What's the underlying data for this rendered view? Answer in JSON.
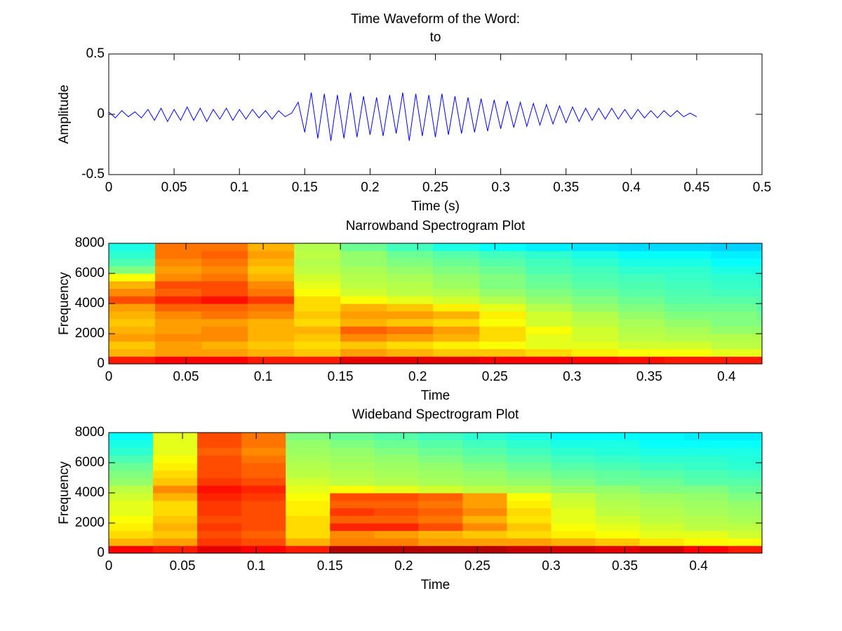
{
  "chart_data": [
    {
      "type": "line",
      "title": [
        "Time Waveform of the Word:",
        "to"
      ],
      "xlabel": "Time (s)",
      "ylabel": "Amplitude",
      "color": "#0000ff",
      "xlim": [
        0,
        0.5
      ],
      "ylim": [
        -0.5,
        0.5
      ],
      "xticks": [
        0,
        0.05,
        0.1,
        0.15,
        0.2,
        0.25,
        0.3,
        0.35,
        0.4,
        0.45,
        0.5
      ],
      "yticks": [
        -0.5,
        0,
        0.5
      ],
      "x": [
        0,
        0.005,
        0.01,
        0.015,
        0.02,
        0.025,
        0.03,
        0.035,
        0.04,
        0.045,
        0.05,
        0.055,
        0.06,
        0.065,
        0.07,
        0.075,
        0.08,
        0.085,
        0.09,
        0.095,
        0.1,
        0.105,
        0.11,
        0.115,
        0.12,
        0.125,
        0.13,
        0.135,
        0.14,
        0.145,
        0.15,
        0.155,
        0.16,
        0.165,
        0.17,
        0.175,
        0.18,
        0.185,
        0.19,
        0.195,
        0.2,
        0.205,
        0.21,
        0.215,
        0.22,
        0.225,
        0.23,
        0.235,
        0.24,
        0.245,
        0.25,
        0.255,
        0.26,
        0.265,
        0.27,
        0.275,
        0.28,
        0.285,
        0.29,
        0.295,
        0.3,
        0.305,
        0.31,
        0.315,
        0.32,
        0.325,
        0.33,
        0.335,
        0.34,
        0.345,
        0.35,
        0.355,
        0.36,
        0.365,
        0.37,
        0.375,
        0.38,
        0.385,
        0.39,
        0.395,
        0.4,
        0.405,
        0.41,
        0.415,
        0.42,
        0.425,
        0.43,
        0.435,
        0.44,
        0.445,
        0.45
      ],
      "values": [
        0.02,
        -0.03,
        0.03,
        -0.02,
        0.02,
        -0.03,
        0.04,
        -0.05,
        0.05,
        -0.06,
        0.04,
        -0.05,
        0.06,
        -0.05,
        0.05,
        -0.06,
        0.04,
        -0.04,
        0.05,
        -0.05,
        0.04,
        -0.04,
        0.04,
        -0.03,
        0.03,
        -0.04,
        0.03,
        -0.02,
        0.01,
        0.1,
        -0.15,
        0.18,
        -0.2,
        0.17,
        -0.22,
        0.16,
        -0.2,
        0.18,
        -0.19,
        0.15,
        -0.17,
        0.14,
        -0.18,
        0.16,
        -0.16,
        0.18,
        -0.22,
        0.17,
        -0.18,
        0.16,
        -0.19,
        0.17,
        -0.17,
        0.15,
        -0.16,
        0.14,
        -0.15,
        0.13,
        -0.14,
        0.12,
        -0.12,
        0.11,
        -0.11,
        0.1,
        -0.1,
        0.09,
        -0.09,
        0.08,
        -0.08,
        0.07,
        -0.07,
        0.06,
        -0.06,
        0.05,
        -0.05,
        0.05,
        -0.04,
        0.05,
        -0.04,
        0.04,
        -0.04,
        0.04,
        -0.03,
        0.03,
        -0.03,
        0.03,
        -0.02,
        0.03,
        -0.02,
        0.01,
        -0.02
      ]
    },
    {
      "type": "heatmap",
      "title": "Narrowband Spectrogram Plot",
      "xlabel": "Time",
      "ylabel": "Frequency",
      "colormap": "jet",
      "xlim": [
        0,
        0.423
      ],
      "ylim": [
        0,
        8000
      ],
      "xticks": [
        0,
        0.05,
        0.1,
        0.15,
        0.2,
        0.25,
        0.3,
        0.35,
        0.4
      ],
      "yticks": [
        0,
        2000,
        4000,
        6000,
        8000
      ],
      "xbins": [
        0,
        0.03,
        0.06,
        0.09,
        0.12,
        0.15,
        0.18,
        0.21,
        0.24,
        0.27,
        0.3,
        0.33,
        0.36,
        0.39,
        0.42,
        0.45
      ],
      "ybins": [
        0,
        500,
        1000,
        1500,
        2000,
        2500,
        3000,
        3500,
        4000,
        4500,
        5000,
        5500,
        6000,
        6500,
        7000,
        7500,
        8000
      ],
      "z": [
        [
          0.85,
          0.88,
          0.88,
          0.85,
          0.85,
          0.9,
          0.9,
          0.9,
          0.88,
          0.88,
          0.87,
          0.86,
          0.85,
          0.85,
          0.85
        ],
        [
          0.7,
          0.72,
          0.72,
          0.7,
          0.68,
          0.72,
          0.7,
          0.68,
          0.68,
          0.66,
          0.64,
          0.62,
          0.62,
          0.6,
          0.6
        ],
        [
          0.68,
          0.72,
          0.7,
          0.68,
          0.66,
          0.68,
          0.66,
          0.64,
          0.62,
          0.6,
          0.6,
          0.58,
          0.58,
          0.56,
          0.56
        ],
        [
          0.72,
          0.74,
          0.74,
          0.7,
          0.68,
          0.74,
          0.72,
          0.7,
          0.66,
          0.6,
          0.58,
          0.56,
          0.55,
          0.55,
          0.55
        ],
        [
          0.7,
          0.72,
          0.74,
          0.7,
          0.7,
          0.78,
          0.76,
          0.72,
          0.66,
          0.62,
          0.58,
          0.55,
          0.54,
          0.52,
          0.52
        ],
        [
          0.68,
          0.72,
          0.72,
          0.7,
          0.66,
          0.7,
          0.68,
          0.66,
          0.62,
          0.58,
          0.56,
          0.54,
          0.52,
          0.5,
          0.5
        ],
        [
          0.7,
          0.74,
          0.76,
          0.74,
          0.68,
          0.72,
          0.72,
          0.7,
          0.64,
          0.58,
          0.55,
          0.52,
          0.5,
          0.5,
          0.48
        ],
        [
          0.72,
          0.78,
          0.78,
          0.76,
          0.66,
          0.7,
          0.68,
          0.64,
          0.6,
          0.55,
          0.52,
          0.5,
          0.48,
          0.48,
          0.46
        ],
        [
          0.8,
          0.84,
          0.86,
          0.82,
          0.66,
          0.62,
          0.6,
          0.58,
          0.55,
          0.52,
          0.5,
          0.48,
          0.46,
          0.46,
          0.45
        ],
        [
          0.74,
          0.78,
          0.8,
          0.76,
          0.62,
          0.58,
          0.56,
          0.55,
          0.52,
          0.5,
          0.48,
          0.46,
          0.45,
          0.44,
          0.44
        ],
        [
          0.7,
          0.8,
          0.8,
          0.74,
          0.6,
          0.56,
          0.55,
          0.53,
          0.5,
          0.48,
          0.46,
          0.45,
          0.44,
          0.43,
          0.42
        ],
        [
          0.62,
          0.74,
          0.76,
          0.7,
          0.58,
          0.55,
          0.54,
          0.52,
          0.5,
          0.47,
          0.45,
          0.44,
          0.43,
          0.42,
          0.42
        ],
        [
          0.5,
          0.72,
          0.74,
          0.68,
          0.56,
          0.54,
          0.52,
          0.5,
          0.48,
          0.45,
          0.44,
          0.42,
          0.42,
          0.4,
          0.4
        ],
        [
          0.45,
          0.74,
          0.76,
          0.7,
          0.55,
          0.52,
          0.5,
          0.48,
          0.46,
          0.44,
          0.42,
          0.4,
          0.4,
          0.38,
          0.38
        ],
        [
          0.42,
          0.76,
          0.78,
          0.72,
          0.56,
          0.52,
          0.48,
          0.46,
          0.44,
          0.42,
          0.4,
          0.38,
          0.38,
          0.36,
          0.36
        ],
        [
          0.4,
          0.76,
          0.76,
          0.7,
          0.55,
          0.48,
          0.44,
          0.4,
          0.38,
          0.36,
          0.35,
          0.34,
          0.34,
          0.33,
          0.33
        ]
      ]
    },
    {
      "type": "heatmap",
      "title": "Wideband Spectrogram Plot",
      "xlabel": "Time",
      "ylabel": "Frequency",
      "colormap": "jet",
      "xlim": [
        0,
        0.443
      ],
      "ylim": [
        0,
        8000
      ],
      "xticks": [
        0,
        0.05,
        0.1,
        0.15,
        0.2,
        0.25,
        0.3,
        0.35,
        0.4
      ],
      "yticks": [
        0,
        2000,
        4000,
        6000,
        8000
      ],
      "xbins": [
        0,
        0.03,
        0.06,
        0.09,
        0.12,
        0.15,
        0.18,
        0.21,
        0.24,
        0.27,
        0.3,
        0.33,
        0.36,
        0.39,
        0.42,
        0.45
      ],
      "ybins": [
        0,
        500,
        1000,
        1500,
        2000,
        2500,
        3000,
        3500,
        4000,
        4500,
        5000,
        5500,
        6000,
        6500,
        7000,
        7500,
        8000
      ],
      "z": [
        [
          0.88,
          0.85,
          0.9,
          0.88,
          0.85,
          0.95,
          0.95,
          0.95,
          0.95,
          0.93,
          0.92,
          0.9,
          0.92,
          0.88,
          0.85
        ],
        [
          0.7,
          0.72,
          0.82,
          0.8,
          0.7,
          0.75,
          0.75,
          0.72,
          0.72,
          0.72,
          0.7,
          0.68,
          0.65,
          0.63,
          0.62
        ],
        [
          0.66,
          0.68,
          0.8,
          0.78,
          0.66,
          0.74,
          0.72,
          0.7,
          0.68,
          0.66,
          0.64,
          0.62,
          0.6,
          0.6,
          0.58
        ],
        [
          0.64,
          0.7,
          0.82,
          0.8,
          0.66,
          0.84,
          0.84,
          0.8,
          0.74,
          0.68,
          0.62,
          0.6,
          0.58,
          0.56,
          0.56
        ],
        [
          0.62,
          0.68,
          0.8,
          0.8,
          0.66,
          0.78,
          0.78,
          0.76,
          0.7,
          0.65,
          0.6,
          0.58,
          0.56,
          0.55,
          0.54
        ],
        [
          0.6,
          0.66,
          0.82,
          0.8,
          0.64,
          0.82,
          0.8,
          0.78,
          0.74,
          0.66,
          0.6,
          0.56,
          0.55,
          0.54,
          0.53
        ],
        [
          0.6,
          0.66,
          0.82,
          0.8,
          0.64,
          0.78,
          0.78,
          0.76,
          0.72,
          0.64,
          0.58,
          0.55,
          0.54,
          0.53,
          0.52
        ],
        [
          0.58,
          0.7,
          0.84,
          0.82,
          0.62,
          0.8,
          0.8,
          0.78,
          0.72,
          0.62,
          0.57,
          0.54,
          0.53,
          0.52,
          0.5
        ],
        [
          0.56,
          0.74,
          0.86,
          0.84,
          0.6,
          0.62,
          0.6,
          0.58,
          0.56,
          0.55,
          0.53,
          0.52,
          0.5,
          0.5,
          0.48
        ],
        [
          0.52,
          0.68,
          0.82,
          0.8,
          0.58,
          0.56,
          0.55,
          0.54,
          0.53,
          0.52,
          0.5,
          0.48,
          0.48,
          0.46,
          0.46
        ],
        [
          0.5,
          0.66,
          0.8,
          0.78,
          0.56,
          0.55,
          0.54,
          0.53,
          0.52,
          0.5,
          0.48,
          0.47,
          0.46,
          0.45,
          0.44
        ],
        [
          0.48,
          0.64,
          0.8,
          0.78,
          0.55,
          0.54,
          0.53,
          0.52,
          0.5,
          0.48,
          0.46,
          0.45,
          0.44,
          0.43,
          0.42
        ],
        [
          0.45,
          0.62,
          0.8,
          0.76,
          0.54,
          0.53,
          0.52,
          0.5,
          0.48,
          0.46,
          0.44,
          0.43,
          0.42,
          0.42,
          0.41
        ],
        [
          0.42,
          0.6,
          0.78,
          0.74,
          0.53,
          0.52,
          0.5,
          0.48,
          0.46,
          0.44,
          0.42,
          0.41,
          0.4,
          0.4,
          0.4
        ],
        [
          0.4,
          0.6,
          0.8,
          0.76,
          0.52,
          0.5,
          0.48,
          0.46,
          0.44,
          0.42,
          0.4,
          0.4,
          0.38,
          0.38,
          0.38
        ],
        [
          0.38,
          0.6,
          0.8,
          0.76,
          0.5,
          0.48,
          0.46,
          0.44,
          0.42,
          0.4,
          0.38,
          0.38,
          0.37,
          0.36,
          0.36
        ]
      ]
    }
  ]
}
